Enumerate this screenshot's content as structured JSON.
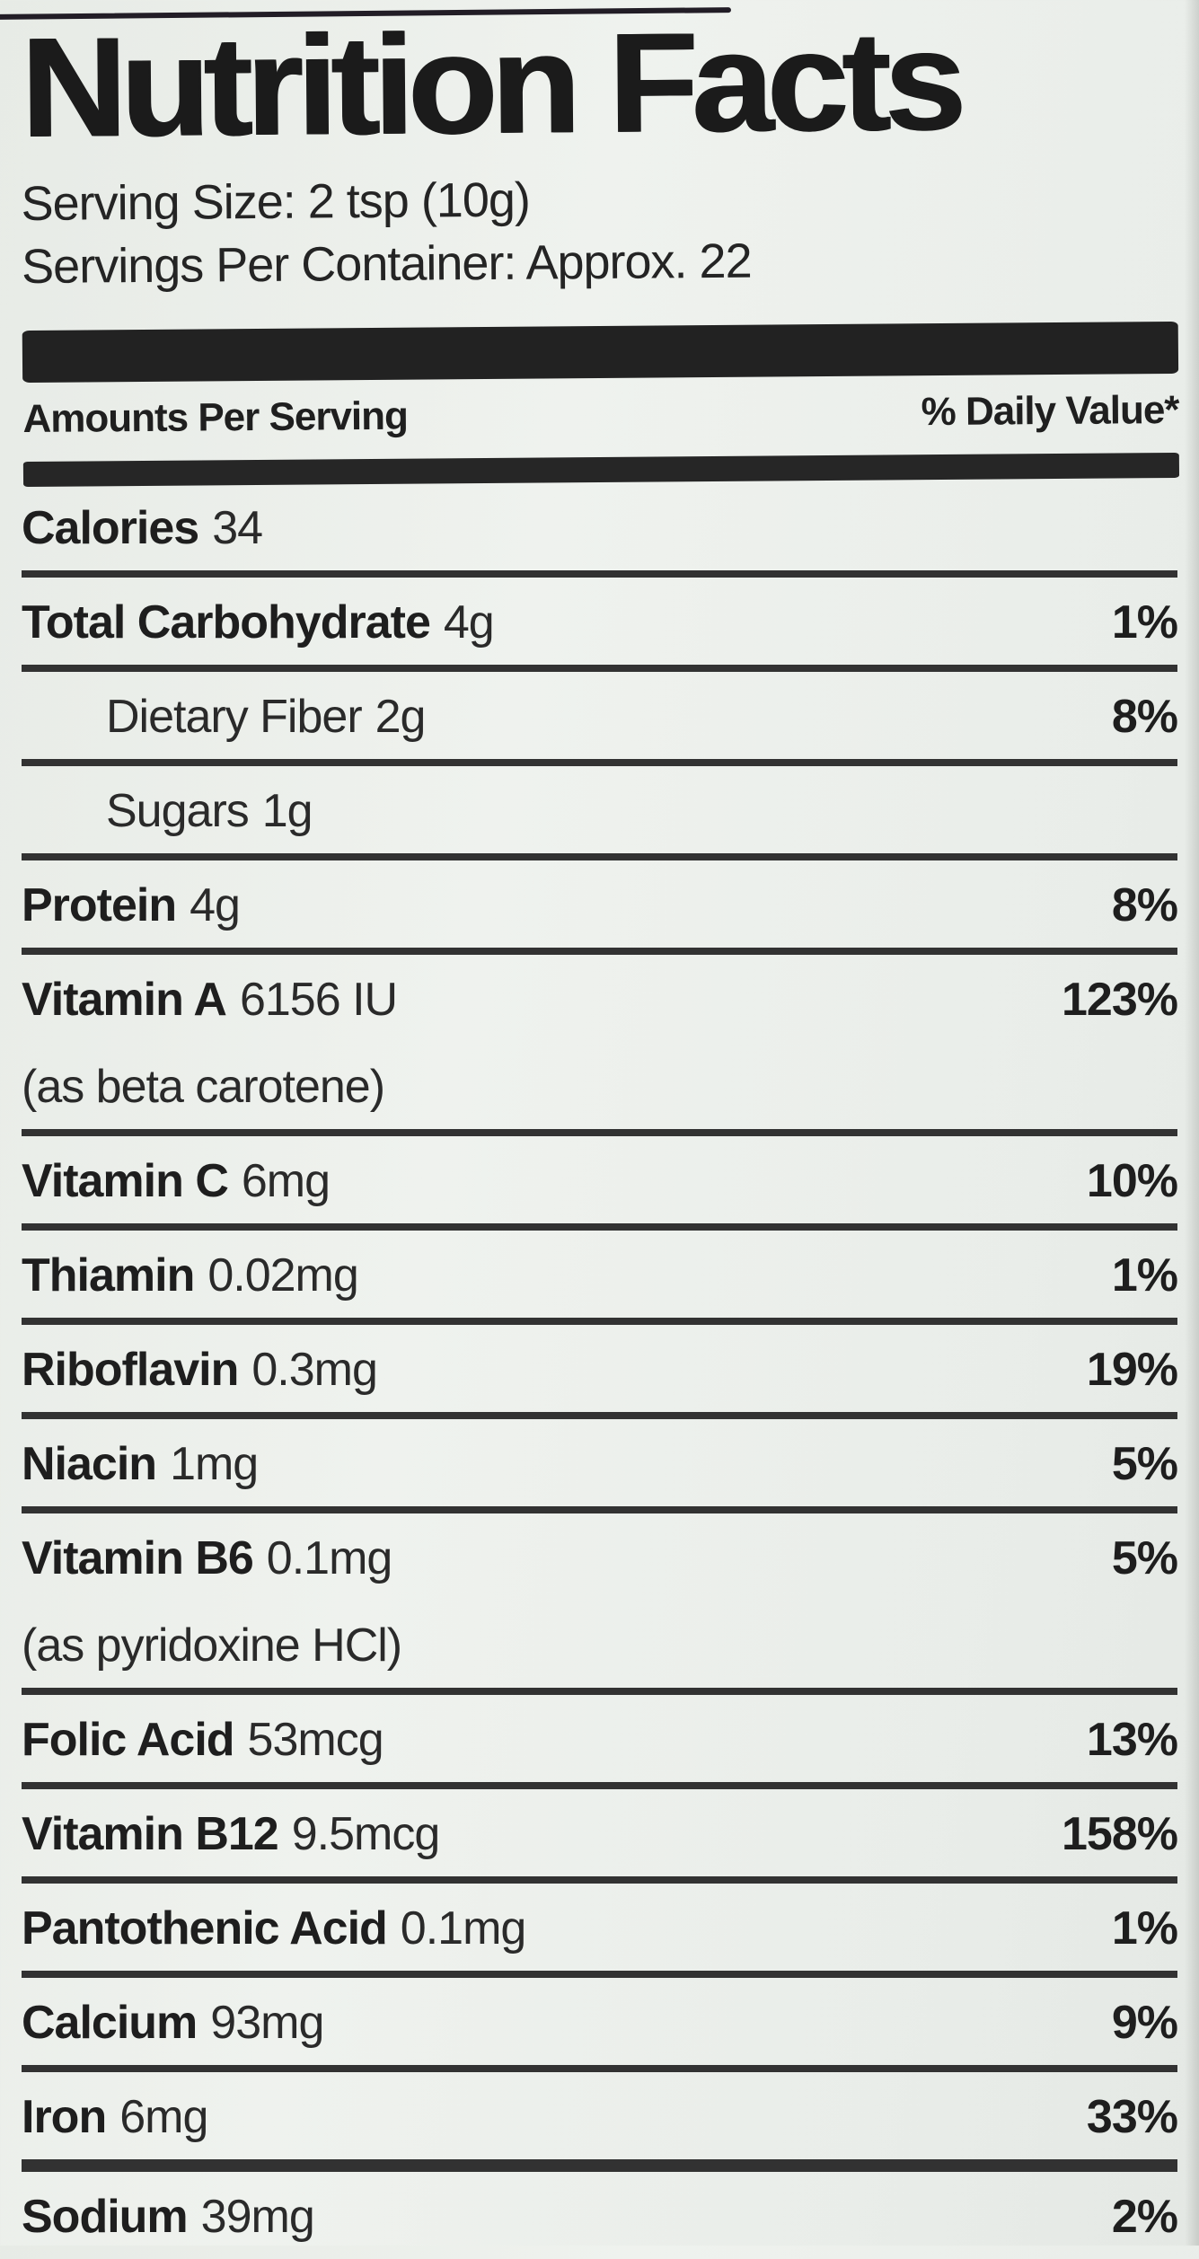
{
  "label": {
    "title": "Nutrition Facts",
    "serving_size": "Serving Size: 2 tsp (10g)",
    "servings_per_container": "Servings Per Container: Approx. 22",
    "header": {
      "amounts": "Amounts Per Serving",
      "daily_value": "% Daily Value*"
    },
    "rows": [
      {
        "name": "Calories",
        "amount": "34",
        "dv": "",
        "indent": false,
        "note": ""
      },
      {
        "name": "Total Carbohydrate",
        "amount": "4g",
        "dv": "1%",
        "indent": false,
        "note": ""
      },
      {
        "name": "Dietary Fiber",
        "amount": "2g",
        "dv": "8%",
        "indent": true,
        "note": ""
      },
      {
        "name": "Sugars",
        "amount": "1g",
        "dv": "",
        "indent": true,
        "note": ""
      },
      {
        "name": "Protein",
        "amount": "4g",
        "dv": "8%",
        "indent": false,
        "note": ""
      },
      {
        "name": "Vitamin A",
        "amount": "6156 IU",
        "dv": "123%",
        "indent": false,
        "note": "(as beta carotene)"
      },
      {
        "name": "Vitamin C",
        "amount": "6mg",
        "dv": "10%",
        "indent": false,
        "note": ""
      },
      {
        "name": "Thiamin",
        "amount": "0.02mg",
        "dv": "1%",
        "indent": false,
        "note": ""
      },
      {
        "name": "Riboflavin",
        "amount": "0.3mg",
        "dv": "19%",
        "indent": false,
        "note": ""
      },
      {
        "name": "Niacin",
        "amount": "1mg",
        "dv": "5%",
        "indent": false,
        "note": ""
      },
      {
        "name": "Vitamin B6",
        "amount": "0.1mg",
        "dv": "5%",
        "indent": false,
        "note": "(as pyridoxine HCl)"
      },
      {
        "name": "Folic Acid",
        "amount": "53mcg",
        "dv": "13%",
        "indent": false,
        "note": ""
      },
      {
        "name": "Vitamin B12",
        "amount": "9.5mcg",
        "dv": "158%",
        "indent": false,
        "note": ""
      },
      {
        "name": "Pantothenic Acid",
        "amount": "0.1mg",
        "dv": "1%",
        "indent": false,
        "note": ""
      },
      {
        "name": "Calcium",
        "amount": "93mg",
        "dv": "9%",
        "indent": false,
        "note": ""
      },
      {
        "name": "Iron",
        "amount": "6mg",
        "dv": "33%",
        "indent": false,
        "note": "",
        "thick_after": true
      },
      {
        "name": "Sodium",
        "amount": "39mg",
        "dv": "2%",
        "indent": false,
        "note": ""
      }
    ],
    "colors": {
      "background": "#ebefeb",
      "text": "#1d1d1d",
      "bar": "#222222",
      "separator": "#323232"
    }
  }
}
